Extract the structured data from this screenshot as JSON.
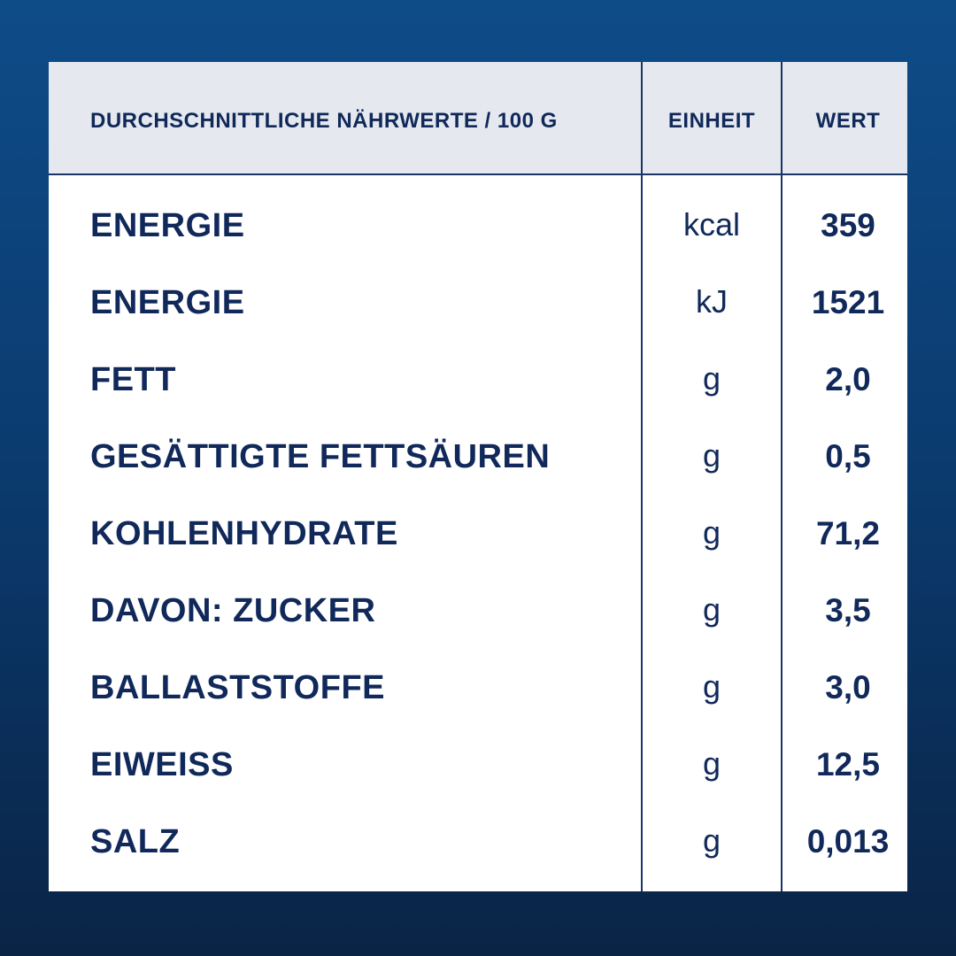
{
  "table": {
    "headers": [
      "DURCHSCHNITTLICHE NÄHRWERTE / 100 G",
      "EINHEIT",
      "WERT"
    ],
    "rows": [
      [
        "ENERGIE",
        "kcal",
        "359"
      ],
      [
        "ENERGIE",
        "kJ",
        "1521"
      ],
      [
        "FETT",
        "g",
        "2,0"
      ],
      [
        "GESÄTTIGTE FETTSÄUREN",
        "g",
        "0,5"
      ],
      [
        "KOHLENHYDRATE",
        "g",
        "71,2"
      ],
      [
        "DAVON: ZUCKER",
        "g",
        "3,5"
      ],
      [
        "BALLASTSTOFFE",
        "g",
        "3,0"
      ],
      [
        "EIWEISS",
        "g",
        "12,5"
      ],
      [
        "SALZ",
        "g",
        "0,013"
      ]
    ]
  }
}
